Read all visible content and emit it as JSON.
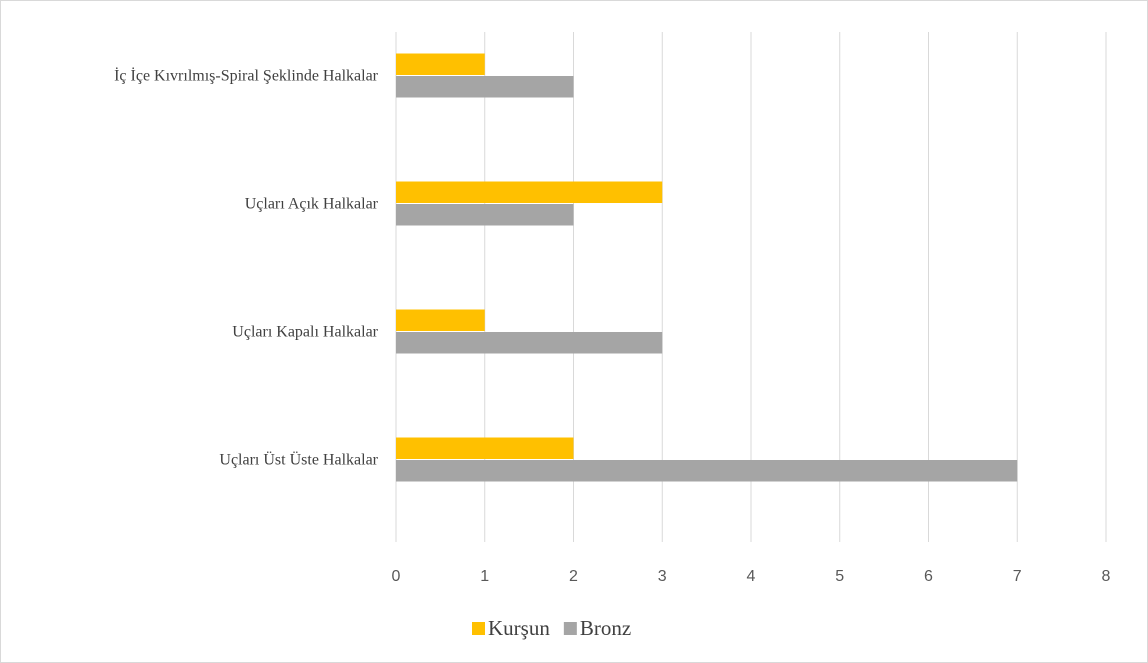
{
  "chart_data": {
    "type": "hbar",
    "categories": [
      "İç İçe Kıvrılmış-Spiral Şeklinde Halkalar",
      "Uçları Açık Halkalar",
      "Uçları Kapalı Halkalar",
      "Uçları Üst Üste Halkalar"
    ],
    "series": [
      {
        "name": "Kurşun",
        "color": "#ffc000",
        "values": [
          1,
          3,
          1,
          2
        ]
      },
      {
        "name": "Bronz",
        "color": "#a5a5a5",
        "values": [
          2,
          2,
          3,
          7
        ]
      }
    ],
    "xlim": [
      0,
      8
    ],
    "xticks": [
      0,
      1,
      2,
      3,
      4,
      5,
      6,
      7,
      8
    ],
    "grid": true,
    "legend": "bottom"
  }
}
